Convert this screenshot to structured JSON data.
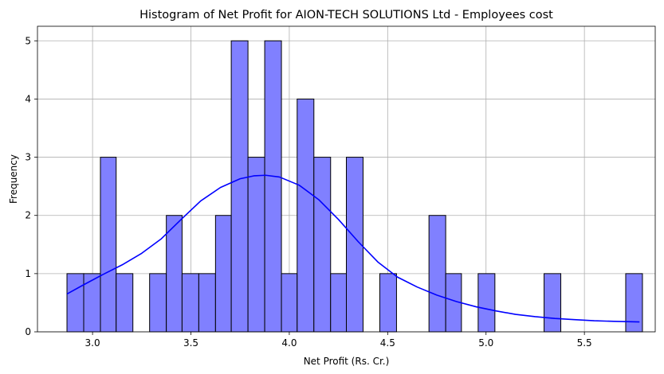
{
  "chart_data": {
    "type": "bar",
    "title": "Histogram of Net Profit for AION-TECH SOLUTIONS Ltd - Employees cost",
    "xlabel": "Net Profit (Rs. Cr.)",
    "ylabel": "Frequency",
    "xlim": [
      2.72,
      5.86
    ],
    "ylim": [
      0,
      5.25
    ],
    "grid": true,
    "x_ticks": [
      3.0,
      3.5,
      4.0,
      4.5,
      5.0,
      5.5
    ],
    "x_tick_labels": [
      "3.0",
      "3.5",
      "4.0",
      "4.5",
      "5.0",
      "5.5"
    ],
    "y_ticks": [
      0,
      1,
      2,
      3,
      4,
      5
    ],
    "y_tick_labels": [
      "0",
      "1",
      "2",
      "3",
      "4",
      "5"
    ],
    "bar_color": "#8080ff",
    "bar_edge_color": "#000000",
    "kde_color": "#0000ff",
    "bins": [
      {
        "x0": 2.87,
        "x1": 2.955,
        "count": 1
      },
      {
        "x0": 2.955,
        "x1": 3.04,
        "count": 1
      },
      {
        "x0": 3.04,
        "x1": 3.12,
        "count": 3
      },
      {
        "x0": 3.12,
        "x1": 3.205,
        "count": 1
      },
      {
        "x0": 3.205,
        "x1": 3.29,
        "count": 0
      },
      {
        "x0": 3.29,
        "x1": 3.375,
        "count": 1
      },
      {
        "x0": 3.375,
        "x1": 3.455,
        "count": 2
      },
      {
        "x0": 3.455,
        "x1": 3.54,
        "count": 1
      },
      {
        "x0": 3.54,
        "x1": 3.625,
        "count": 1
      },
      {
        "x0": 3.625,
        "x1": 3.705,
        "count": 2
      },
      {
        "x0": 3.705,
        "x1": 3.79,
        "count": 5
      },
      {
        "x0": 3.79,
        "x1": 3.875,
        "count": 3
      },
      {
        "x0": 3.875,
        "x1": 3.96,
        "count": 5
      },
      {
        "x0": 3.96,
        "x1": 4.04,
        "count": 1
      },
      {
        "x0": 4.04,
        "x1": 4.125,
        "count": 4
      },
      {
        "x0": 4.125,
        "x1": 4.21,
        "count": 3
      },
      {
        "x0": 4.21,
        "x1": 4.29,
        "count": 1
      },
      {
        "x0": 4.29,
        "x1": 4.375,
        "count": 3
      },
      {
        "x0": 4.375,
        "x1": 4.46,
        "count": 0
      },
      {
        "x0": 4.46,
        "x1": 4.545,
        "count": 1
      },
      {
        "x0": 4.545,
        "x1": 4.625,
        "count": 0
      },
      {
        "x0": 4.625,
        "x1": 4.71,
        "count": 0
      },
      {
        "x0": 4.71,
        "x1": 4.795,
        "count": 2
      },
      {
        "x0": 4.795,
        "x1": 4.875,
        "count": 1
      },
      {
        "x0": 4.875,
        "x1": 4.96,
        "count": 0
      },
      {
        "x0": 4.96,
        "x1": 5.045,
        "count": 1
      },
      {
        "x0": 5.045,
        "x1": 5.13,
        "count": 0
      },
      {
        "x0": 5.13,
        "x1": 5.21,
        "count": 0
      },
      {
        "x0": 5.21,
        "x1": 5.295,
        "count": 0
      },
      {
        "x0": 5.295,
        "x1": 5.38,
        "count": 1
      },
      {
        "x0": 5.38,
        "x1": 5.46,
        "count": 0
      },
      {
        "x0": 5.46,
        "x1": 5.545,
        "count": 0
      },
      {
        "x0": 5.545,
        "x1": 5.63,
        "count": 0
      },
      {
        "x0": 5.63,
        "x1": 5.71,
        "count": 0
      },
      {
        "x0": 5.71,
        "x1": 5.795,
        "count": 1
      }
    ],
    "kde": {
      "x": [
        2.87,
        2.95,
        3.05,
        3.15,
        3.25,
        3.35,
        3.45,
        3.55,
        3.65,
        3.75,
        3.82,
        3.88,
        3.95,
        4.05,
        4.15,
        4.25,
        4.35,
        4.45,
        4.55,
        4.65,
        4.75,
        4.85,
        4.95,
        5.05,
        5.15,
        5.25,
        5.35,
        5.45,
        5.55,
        5.65,
        5.78
      ],
      "y": [
        0.65,
        0.8,
        0.98,
        1.15,
        1.35,
        1.6,
        1.93,
        2.25,
        2.48,
        2.63,
        2.68,
        2.69,
        2.66,
        2.52,
        2.27,
        1.93,
        1.55,
        1.2,
        0.94,
        0.77,
        0.63,
        0.52,
        0.43,
        0.36,
        0.3,
        0.26,
        0.23,
        0.21,
        0.19,
        0.18,
        0.17
      ]
    }
  }
}
